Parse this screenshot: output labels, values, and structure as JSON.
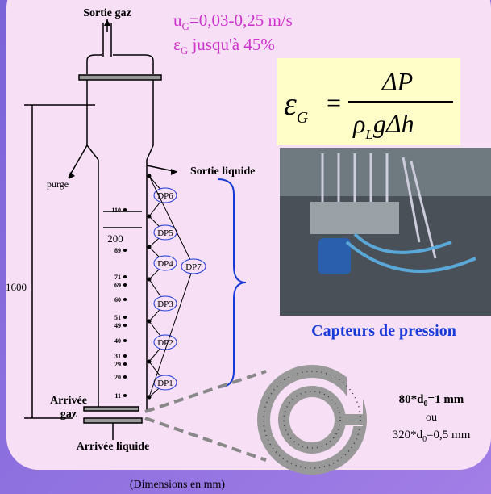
{
  "header": {
    "gas_out": "Sortie gaz",
    "velocity": {
      "symbol": "u",
      "sub": "G",
      "rest": "=0,03-0,25 m/s"
    },
    "holdup": {
      "symbol": "ε",
      "sub": "G",
      "rest": " jusqu'à 45%"
    }
  },
  "formula": {
    "lhs": "ε",
    "lhs_sub": "G",
    "eq": "=",
    "numerator": "ΔP",
    "den_rho": "ρ",
    "den_sub": "L",
    "den_rest": "gΔh"
  },
  "column": {
    "liquid_out": "Sortie liquide",
    "purge": "purge",
    "height": "1600",
    "width": "200",
    "gas_in": [
      "Arrivée",
      "gaz"
    ],
    "liquid_in": "Arrivée liquide",
    "taps": [
      "110",
      "89",
      "71",
      "69",
      "60",
      "51",
      "49",
      "40",
      "31",
      "29",
      "20",
      "11"
    ],
    "dp": [
      "DP6",
      "DP5",
      "DP4",
      "DP3",
      "DP2",
      "DP1"
    ],
    "dp_total": "DP7"
  },
  "photo_caption": "Capteurs de pression",
  "sparger": {
    "option1": {
      "count": "80*d",
      "sub": "0",
      "rest": "=1 mm"
    },
    "or": "ou",
    "option2": {
      "count": "320*d",
      "sub": "0",
      "rest": "=0,5 mm"
    }
  },
  "footer": "(Dimensions en mm)"
}
